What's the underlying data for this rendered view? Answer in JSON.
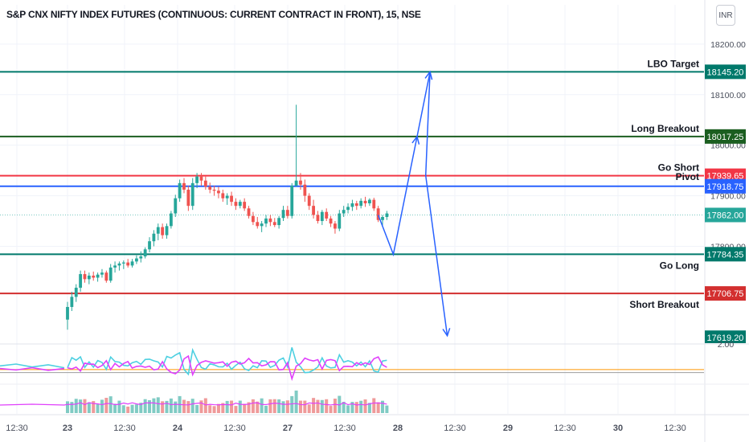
{
  "chart_data": {
    "type": "candlestick",
    "title": "S&P CNX NIFTY INDEX FUTURES (CONTINUOUS: CURRENT CONTRACT IN FRONT), 15, NSE",
    "currency": "INR",
    "y_ticks": [
      "18200.00",
      "18100.00",
      "18000.00",
      "17900.00",
      "17800.00"
    ],
    "x_ticks": [
      "12:30",
      "23",
      "12:30",
      "24",
      "12:30",
      "27",
      "12:30",
      "28",
      "12:30",
      "29",
      "12:30",
      "30",
      "12:30"
    ],
    "ylim": [
      17610,
      18230
    ],
    "current_price": {
      "value": 17862.0,
      "label": "17862.00",
      "color": "#26a69a"
    },
    "levels": [
      {
        "name": "LBO Target",
        "value": 18145.2,
        "label": "18145.20",
        "color": "#00796b"
      },
      {
        "name": "Long Breakout",
        "value": 18017.25,
        "label": "18017.25",
        "color": "#1b5e20"
      },
      {
        "name": "Go Short",
        "value": 17939.65,
        "label": "17939.65",
        "color": "#f23645"
      },
      {
        "name": "Pivot",
        "value": 17918.75,
        "label": "17918.75",
        "color": "#2962ff"
      },
      {
        "name": "Go Long",
        "value": 17784.35,
        "label": "17784.35",
        "color": "#00796b"
      },
      {
        "name": "Short Breakout",
        "value": 17706.75,
        "label": "17706.75",
        "color": "#d32f2f"
      }
    ],
    "partial_label": {
      "text": "17619.20",
      "value": 17619.2,
      "color": "#00796b"
    },
    "indicator_tick": "2.00",
    "candles": [
      [
        17655,
        17690,
        17635,
        17680
      ],
      [
        17680,
        17710,
        17672,
        17700
      ],
      [
        17700,
        17725,
        17690,
        17718
      ],
      [
        17718,
        17752,
        17710,
        17745
      ],
      [
        17745,
        17752,
        17728,
        17735
      ],
      [
        17735,
        17748,
        17725,
        17742
      ],
      [
        17742,
        17750,
        17732,
        17738
      ],
      [
        17738,
        17748,
        17730,
        17744
      ],
      [
        17744,
        17755,
        17738,
        17748
      ],
      [
        17748,
        17752,
        17728,
        17732
      ],
      [
        17732,
        17765,
        17728,
        17758
      ],
      [
        17758,
        17770,
        17748,
        17762
      ],
      [
        17762,
        17770,
        17752,
        17766
      ],
      [
        17766,
        17772,
        17755,
        17768
      ],
      [
        17768,
        17775,
        17758,
        17762
      ],
      [
        17762,
        17775,
        17758,
        17770
      ],
      [
        17770,
        17782,
        17765,
        17776
      ],
      [
        17776,
        17790,
        17768,
        17780
      ],
      [
        17780,
        17798,
        17776,
        17794
      ],
      [
        17794,
        17818,
        17788,
        17810
      ],
      [
        17810,
        17832,
        17800,
        17825
      ],
      [
        17825,
        17845,
        17812,
        17838
      ],
      [
        17838,
        17845,
        17815,
        17822
      ],
      [
        17822,
        17845,
        17815,
        17840
      ],
      [
        17840,
        17870,
        17835,
        17865
      ],
      [
        17865,
        17902,
        17858,
        17895
      ],
      [
        17895,
        17932,
        17888,
        17925
      ],
      [
        17925,
        17935,
        17905,
        17912
      ],
      [
        17912,
        17920,
        17870,
        17880
      ],
      [
        17880,
        17935,
        17872,
        17925
      ],
      [
        17925,
        17945,
        17915,
        17938
      ],
      [
        17938,
        17945,
        17920,
        17930
      ],
      [
        17930,
        17938,
        17912,
        17918
      ],
      [
        17918,
        17926,
        17905,
        17912
      ],
      [
        17912,
        17920,
        17900,
        17910
      ],
      [
        17910,
        17918,
        17895,
        17905
      ],
      [
        17905,
        17912,
        17888,
        17895
      ],
      [
        17895,
        17905,
        17882,
        17900
      ],
      [
        17900,
        17908,
        17880,
        17888
      ],
      [
        17888,
        17895,
        17872,
        17880
      ],
      [
        17880,
        17892,
        17875,
        17888
      ],
      [
        17888,
        17895,
        17870,
        17875
      ],
      [
        17875,
        17880,
        17855,
        17860
      ],
      [
        17860,
        17868,
        17842,
        17848
      ],
      [
        17848,
        17858,
        17835,
        17840
      ],
      [
        17840,
        17850,
        17828,
        17845
      ],
      [
        17845,
        17862,
        17838,
        17855
      ],
      [
        17855,
        17862,
        17840,
        17848
      ],
      [
        17848,
        17856,
        17838,
        17842
      ],
      [
        17842,
        17860,
        17835,
        17856
      ],
      [
        17856,
        17880,
        17850,
        17872
      ],
      [
        17872,
        17880,
        17855,
        17860
      ],
      [
        17860,
        17925,
        17855,
        17920
      ],
      [
        17920,
        18080,
        17918,
        17930
      ],
      [
        17930,
        17945,
        17912,
        17922
      ],
      [
        17922,
        17932,
        17888,
        17900
      ],
      [
        17900,
        17905,
        17872,
        17880
      ],
      [
        17880,
        17892,
        17855,
        17862
      ],
      [
        17862,
        17870,
        17845,
        17850
      ],
      [
        17850,
        17872,
        17842,
        17868
      ],
      [
        17868,
        17875,
        17850,
        17855
      ],
      [
        17855,
        17860,
        17838,
        17845
      ],
      [
        17845,
        17850,
        17825,
        17835
      ],
      [
        17835,
        17872,
        17830,
        17865
      ],
      [
        17865,
        17880,
        17858,
        17872
      ],
      [
        17872,
        17885,
        17865,
        17878
      ],
      [
        17878,
        17892,
        17870,
        17885
      ],
      [
        17885,
        17890,
        17872,
        17880
      ],
      [
        17880,
        17895,
        17875,
        17890
      ],
      [
        17890,
        17898,
        17878,
        17885
      ],
      [
        17885,
        17895,
        17880,
        17892
      ],
      [
        17892,
        17896,
        17870,
        17875
      ],
      [
        17875,
        17880,
        17848,
        17852
      ],
      [
        17852,
        17862,
        17840,
        17858
      ],
      [
        17858,
        17870,
        17852,
        17865
      ]
    ],
    "projection_path": [
      [
        72,
        17862
      ],
      [
        75.5,
        17784
      ],
      [
        81,
        18017
      ],
      [
        84,
        18145
      ],
      [
        83,
        17940
      ],
      [
        88,
        17623
      ]
    ]
  }
}
